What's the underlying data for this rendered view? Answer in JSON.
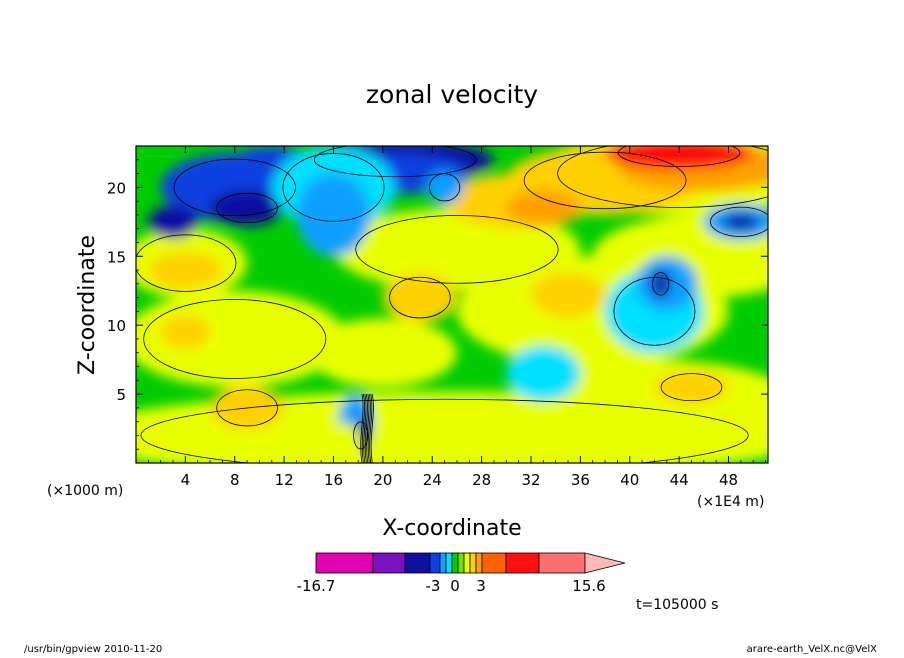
{
  "chart_data": {
    "type": "heatmap",
    "title": "zonal velocity",
    "xlabel": "X-coordinate",
    "ylabel": "Z-coordinate",
    "x_unit_left": "(×1000 m)",
    "x_unit_right": "(×1E4 m)",
    "xticks": [
      "4",
      "8",
      "12",
      "16",
      "20",
      "24",
      "28",
      "32",
      "36",
      "40",
      "44",
      "48"
    ],
    "yticks": [
      "5",
      "10",
      "15",
      "20"
    ],
    "xlim": [
      0,
      51.2
    ],
    "ylim": [
      0,
      23
    ],
    "colorbar": {
      "labels": [
        "-16.7",
        "-3",
        "0",
        "3",
        "15.6"
      ],
      "colors": [
        "#e000b0",
        "#7a10c0",
        "#1010a0",
        "#1040e0",
        "#10a0ff",
        "#00e0ff",
        "#00cc00",
        "#70e000",
        "#e8ff00",
        "#ffd000",
        "#ffa000",
        "#ff6000",
        "#ff1010",
        "#ff7070",
        "#ffb8b8"
      ]
    },
    "time_label": "t=105000 s",
    "footer_left": "/usr/bin/gpview   2010-11-20",
    "footer_right": "arare-earth_VelX.nc@VelX"
  }
}
